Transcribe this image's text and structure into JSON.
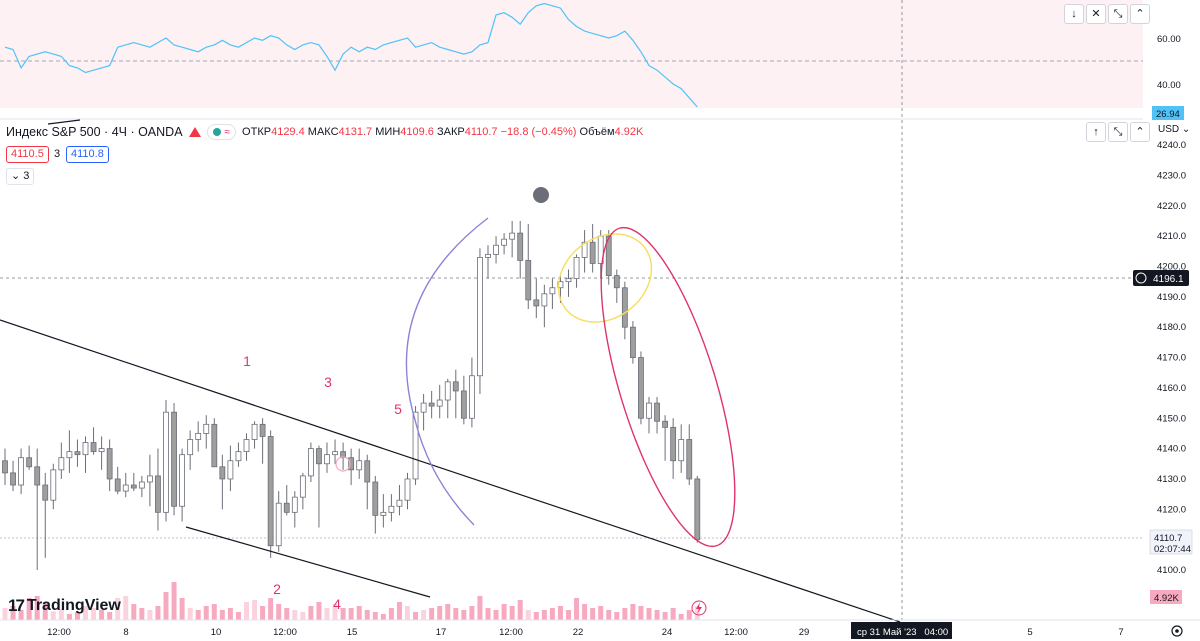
{
  "header": {
    "symbol": "Индекс S&P 500 · 4Ч · OANDA",
    "ohlc": {
      "open_label": "ОТКР",
      "open": "4129.4",
      "high_label": "МАКС",
      "high": "4131.7",
      "low_label": "МИН",
      "low": "4109.6",
      "close_label": "ЗАКР",
      "close": "4110.7",
      "change": "−18.8 (−0.45%)",
      "volume_label": "Объём",
      "volume": "4.92K"
    },
    "bid": "4110.5",
    "spread": "3",
    "ask": "4110.8",
    "indicators_count": "3",
    "currency": "USD"
  },
  "colors": {
    "up": "#ffffff",
    "down": "#9e9e9e",
    "trendline": "#131722",
    "rsi": "#4fc3f7",
    "annotation": "#e91e63",
    "ellipse_yellow": "#f5dd5b",
    "ellipse_pink": "#e0336b",
    "arc": "#8e82d6",
    "volume": "#f7a9c0"
  },
  "price_axis": {
    "ticks": [
      "4240.0",
      "4230.0",
      "4220.0",
      "4210.0",
      "4200.0",
      "4190.0",
      "4180.0",
      "4170.0",
      "4160.0",
      "4150.0",
      "4140.0",
      "4130.0",
      "4120.0",
      "4110.0",
      "4100.0"
    ],
    "crosshair_price": "4196.1",
    "last_price": "4110.7",
    "countdown": "02:07:44",
    "volume_label": "4.92K"
  },
  "rsi_axis": {
    "ticks": [
      "60.00",
      "40.00"
    ],
    "value_label": "26.94"
  },
  "time_axis": {
    "ticks": [
      "12:00",
      "8",
      "10",
      "12:00",
      "15",
      "17",
      "12:00",
      "22",
      "24",
      "12:00",
      "29",
      "5",
      "7"
    ],
    "crosshair": "ср 31 Май '23   04:00"
  },
  "annotations": [
    "1",
    "2",
    "3",
    "4",
    "5"
  ],
  "watermark": "TradingView",
  "chart_data": {
    "type": "candlestick",
    "title": "Индекс S&P 500 · 4Ч · OANDA",
    "ylim": [
      4100,
      4240
    ],
    "ohlc": [
      [
        4136,
        4140,
        4128,
        4132
      ],
      [
        4132,
        4136,
        4126,
        4128
      ],
      [
        4128,
        4140,
        4125,
        4137
      ],
      [
        4137,
        4141,
        4133,
        4134
      ],
      [
        4134,
        4140,
        4100,
        4128
      ],
      [
        4128,
        4132,
        4104,
        4123
      ],
      [
        4123,
        4135,
        4120,
        4133
      ],
      [
        4133,
        4142,
        4130,
        4137
      ],
      [
        4137,
        4146,
        4132,
        4139
      ],
      [
        4139,
        4143,
        4134,
        4138
      ],
      [
        4138,
        4144,
        4132,
        4142
      ],
      [
        4142,
        4147,
        4138,
        4139
      ],
      [
        4139,
        4144,
        4133,
        4140
      ],
      [
        4140,
        4143,
        4126,
        4130
      ],
      [
        4130,
        4134,
        4125,
        4126
      ],
      [
        4126,
        4132,
        4124,
        4128
      ],
      [
        4128,
        4132,
        4126,
        4127
      ],
      [
        4127,
        4131,
        4124,
        4129
      ],
      [
        4129,
        4138,
        4121,
        4131
      ],
      [
        4131,
        4140,
        4113,
        4119
      ],
      [
        4119,
        4156,
        4116,
        4152
      ],
      [
        4152,
        4155,
        4118,
        4121
      ],
      [
        4121,
        4140,
        4116,
        4138
      ],
      [
        4138,
        4146,
        4133,
        4143
      ],
      [
        4143,
        4149,
        4139,
        4145
      ],
      [
        4145,
        4151,
        4140,
        4148
      ],
      [
        4148,
        4150,
        4134,
        4134
      ],
      [
        4134,
        4138,
        4120,
        4130
      ],
      [
        4130,
        4141,
        4126,
        4136
      ],
      [
        4136,
        4142,
        4134,
        4139
      ],
      [
        4139,
        4145,
        4136,
        4143
      ],
      [
        4143,
        4149,
        4140,
        4148
      ],
      [
        4148,
        4150,
        4135,
        4144
      ],
      [
        4144,
        4146,
        4104,
        4108
      ],
      [
        4108,
        4126,
        4106,
        4122
      ],
      [
        4122,
        4128,
        4118,
        4119
      ],
      [
        4119,
        4126,
        4114,
        4124
      ],
      [
        4124,
        4132,
        4120,
        4131
      ],
      [
        4131,
        4142,
        4129,
        4140
      ],
      [
        4140,
        4141,
        4114,
        4135
      ],
      [
        4135,
        4142,
        4132,
        4138
      ],
      [
        4138,
        4143,
        4135,
        4139
      ],
      [
        4139,
        4142,
        4133,
        4137
      ],
      [
        4137,
        4140,
        4128,
        4133
      ],
      [
        4133,
        4140,
        4130,
        4136
      ],
      [
        4136,
        4138,
        4120,
        4129
      ],
      [
        4129,
        4131,
        4112,
        4118
      ],
      [
        4118,
        4125,
        4114,
        4119
      ],
      [
        4119,
        4125,
        4116,
        4121
      ],
      [
        4121,
        4128,
        4118,
        4123
      ],
      [
        4123,
        4132,
        4120,
        4130
      ],
      [
        4130,
        4154,
        4128,
        4152
      ],
      [
        4152,
        4158,
        4146,
        4155
      ],
      [
        4155,
        4159,
        4150,
        4154
      ],
      [
        4154,
        4161,
        4150,
        4156
      ],
      [
        4156,
        4163,
        4150,
        4162
      ],
      [
        4162,
        4166,
        4150,
        4159
      ],
      [
        4159,
        4164,
        4148,
        4150
      ],
      [
        4150,
        4170,
        4147,
        4164
      ],
      [
        4164,
        4206,
        4158,
        4203
      ],
      [
        4203,
        4207,
        4196,
        4204
      ],
      [
        4204,
        4210,
        4201,
        4207
      ],
      [
        4207,
        4211,
        4204,
        4209
      ],
      [
        4209,
        4215,
        4203,
        4211
      ],
      [
        4211,
        4215,
        4196,
        4202
      ],
      [
        4202,
        4214,
        4186,
        4189
      ],
      [
        4189,
        4196,
        4183,
        4187
      ],
      [
        4187,
        4194,
        4180,
        4191
      ],
      [
        4191,
        4196,
        4186,
        4193
      ],
      [
        4193,
        4197,
        4188,
        4195
      ],
      [
        4195,
        4199,
        4190,
        4196
      ],
      [
        4196,
        4204,
        4193,
        4203
      ],
      [
        4203,
        4212,
        4198,
        4208
      ],
      [
        4208,
        4214,
        4198,
        4201
      ],
      [
        4201,
        4212,
        4196,
        4210
      ],
      [
        4210,
        4212,
        4194,
        4197
      ],
      [
        4197,
        4199,
        4188,
        4193
      ],
      [
        4193,
        4195,
        4176,
        4180
      ],
      [
        4180,
        4182,
        4168,
        4170
      ],
      [
        4170,
        4172,
        4148,
        4150
      ],
      [
        4150,
        4157,
        4145,
        4155
      ],
      [
        4155,
        4157,
        4145,
        4149
      ],
      [
        4149,
        4151,
        4136,
        4147
      ],
      [
        4147,
        4150,
        4130,
        4136
      ],
      [
        4136,
        4148,
        4132,
        4143
      ],
      [
        4143,
        4148,
        4128,
        4130
      ],
      [
        4130,
        4131,
        4109,
        4110
      ]
    ],
    "volume": [
      {
        "up": true,
        "v": 0.3
      },
      {
        "up": false,
        "v": 0.35
      },
      {
        "up": false,
        "v": 0.25
      },
      {
        "up": false,
        "v": 0.55
      },
      {
        "up": false,
        "v": 0.6
      },
      {
        "up": false,
        "v": 0.45
      },
      {
        "up": true,
        "v": 0.22
      },
      {
        "up": true,
        "v": 0.28
      },
      {
        "up": false,
        "v": 0.15
      },
      {
        "up": false,
        "v": 0.2
      },
      {
        "up": true,
        "v": 0.35
      },
      {
        "up": true,
        "v": 0.3
      },
      {
        "up": false,
        "v": 0.25
      },
      {
        "up": false,
        "v": 0.2
      },
      {
        "up": true,
        "v": 0.55
      },
      {
        "up": true,
        "v": 0.6
      },
      {
        "up": false,
        "v": 0.4
      },
      {
        "up": false,
        "v": 0.3
      },
      {
        "up": true,
        "v": 0.25
      },
      {
        "up": false,
        "v": 0.35
      },
      {
        "up": false,
        "v": 0.7
      },
      {
        "up": false,
        "v": 0.95
      },
      {
        "up": false,
        "v": 0.55
      },
      {
        "up": true,
        "v": 0.3
      },
      {
        "up": false,
        "v": 0.25
      },
      {
        "up": false,
        "v": 0.35
      },
      {
        "up": false,
        "v": 0.4
      },
      {
        "up": false,
        "v": 0.25
      },
      {
        "up": false,
        "v": 0.3
      },
      {
        "up": false,
        "v": 0.2
      },
      {
        "up": true,
        "v": 0.45
      },
      {
        "up": true,
        "v": 0.5
      },
      {
        "up": false,
        "v": 0.35
      },
      {
        "up": false,
        "v": 0.55
      },
      {
        "up": false,
        "v": 0.4
      },
      {
        "up": false,
        "v": 0.3
      },
      {
        "up": true,
        "v": 0.25
      },
      {
        "up": true,
        "v": 0.2
      },
      {
        "up": false,
        "v": 0.35
      },
      {
        "up": false,
        "v": 0.45
      },
      {
        "up": true,
        "v": 0.3
      },
      {
        "up": true,
        "v": 0.4
      },
      {
        "up": false,
        "v": 0.3
      },
      {
        "up": false,
        "v": 0.3
      },
      {
        "up": false,
        "v": 0.35
      },
      {
        "up": false,
        "v": 0.25
      },
      {
        "up": false,
        "v": 0.2
      },
      {
        "up": false,
        "v": 0.15
      },
      {
        "up": false,
        "v": 0.3
      },
      {
        "up": false,
        "v": 0.45
      },
      {
        "up": true,
        "v": 0.35
      },
      {
        "up": false,
        "v": 0.2
      },
      {
        "up": true,
        "v": 0.25
      },
      {
        "up": false,
        "v": 0.3
      },
      {
        "up": false,
        "v": 0.35
      },
      {
        "up": false,
        "v": 0.4
      },
      {
        "up": false,
        "v": 0.3
      },
      {
        "up": false,
        "v": 0.25
      },
      {
        "up": false,
        "v": 0.35
      },
      {
        "up": false,
        "v": 0.6
      },
      {
        "up": false,
        "v": 0.3
      },
      {
        "up": false,
        "v": 0.25
      },
      {
        "up": false,
        "v": 0.4
      },
      {
        "up": false,
        "v": 0.35
      },
      {
        "up": false,
        "v": 0.5
      },
      {
        "up": true,
        "v": 0.25
      },
      {
        "up": false,
        "v": 0.2
      },
      {
        "up": false,
        "v": 0.25
      },
      {
        "up": false,
        "v": 0.3
      },
      {
        "up": false,
        "v": 0.35
      },
      {
        "up": false,
        "v": 0.25
      },
      {
        "up": false,
        "v": 0.55
      },
      {
        "up": false,
        "v": 0.4
      },
      {
        "up": false,
        "v": 0.3
      },
      {
        "up": false,
        "v": 0.35
      },
      {
        "up": false,
        "v": 0.25
      },
      {
        "up": false,
        "v": 0.2
      },
      {
        "up": false,
        "v": 0.3
      },
      {
        "up": false,
        "v": 0.4
      },
      {
        "up": false,
        "v": 0.35
      },
      {
        "up": false,
        "v": 0.3
      },
      {
        "up": false,
        "v": 0.25
      },
      {
        "up": false,
        "v": 0.2
      },
      {
        "up": false,
        "v": 0.3
      },
      {
        "up": false,
        "v": 0.15
      },
      {
        "up": false,
        "v": 0.25
      },
      {
        "up": true,
        "v": 0.35
      }
    ],
    "rsi": [
      56,
      55,
      47,
      52,
      53,
      54,
      53,
      52,
      48,
      47,
      45,
      46,
      47,
      48,
      56,
      57,
      58,
      57,
      56,
      58,
      60,
      57,
      56,
      55,
      54,
      56,
      57,
      59,
      57,
      56,
      58,
      60,
      59,
      61,
      60,
      57,
      55,
      57,
      58,
      57,
      52,
      46,
      53,
      56,
      54,
      56,
      55,
      57,
      58,
      59,
      60,
      56,
      57,
      58,
      56,
      55,
      54,
      53,
      54,
      57,
      58,
      70,
      71,
      69,
      66,
      71,
      74,
      75,
      74,
      73,
      68,
      65,
      63,
      62,
      61,
      60,
      61,
      63,
      59,
      54,
      48,
      46,
      43,
      40,
      38,
      34,
      30
    ]
  }
}
